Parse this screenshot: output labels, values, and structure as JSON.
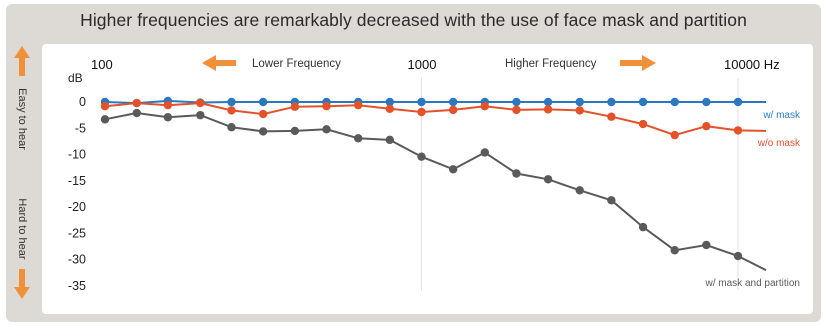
{
  "title": "Higher frequencies are remarkably decreased with the use of face mask and partition",
  "side_labels": {
    "top": "Easy to hear",
    "bottom": "Hard to hear"
  },
  "chart_data": {
    "type": "line",
    "unit_label": "dB",
    "x_unit": "Hz",
    "x_scale": "log",
    "x_ticks": [
      {
        "value": 100,
        "label": "100"
      },
      {
        "value": 1000,
        "label": "1000"
      },
      {
        "value": 10000,
        "label": "10000 Hz"
      }
    ],
    "y_ticks": [
      0,
      -5,
      -10,
      -15,
      -20,
      -25,
      -30,
      -35
    ],
    "ylim": [
      -35,
      0
    ],
    "annotations": {
      "lower": "Lower Frequency",
      "higher": "Higher Frequency"
    },
    "x": [
      100,
      126,
      158,
      200,
      251,
      316,
      398,
      501,
      631,
      794,
      1000,
      1259,
      1585,
      1995,
      2512,
      3162,
      3981,
      5012,
      6310,
      7943,
      10000
    ],
    "series": [
      {
        "name": "w/ mask",
        "color": "#2b78c2",
        "values": [
          0,
          -0.2,
          0.2,
          -0.1,
          0,
          0,
          0,
          0,
          0,
          0,
          0,
          0,
          0,
          0,
          0,
          0,
          0,
          0,
          0,
          0,
          0
        ],
        "tail_end": 0
      },
      {
        "name": "w/o mask",
        "color": "#e4522a",
        "values": [
          -0.8,
          -0.2,
          -0.6,
          -0.2,
          -1.6,
          -2.3,
          -0.9,
          -0.8,
          -0.6,
          -1.3,
          -1.9,
          -1.5,
          -0.8,
          -1.5,
          -1.4,
          -1.6,
          -2.8,
          -4.2,
          -6.3,
          -4.6,
          -5.4
        ],
        "tail_end": -5.5
      },
      {
        "name": "w/ mask and partition",
        "color": "#5a5a5a",
        "values": [
          -3.3,
          -2.1,
          -2.9,
          -2.5,
          -4.8,
          -5.6,
          -5.5,
          -5.2,
          -6.9,
          -7.2,
          -10.4,
          -12.8,
          -9.6,
          -13.6,
          -14.7,
          -16.8,
          -18.7,
          -23.8,
          -28.2,
          -27.2,
          -29.3
        ],
        "tail_end": -32.0
      }
    ]
  },
  "colors": {
    "accent_arrow": "#f0913a",
    "grid": "#e2e2e2"
  }
}
